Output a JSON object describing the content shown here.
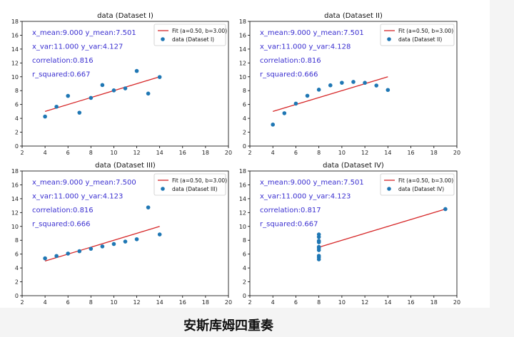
{
  "suptitle": "安斯库姆四重奏",
  "colors": {
    "fit": "#d62728",
    "points": "#1f77b4",
    "stats_text": "#3a2fd0"
  },
  "chart_data": [
    {
      "type": "scatter",
      "title": "data (Dataset I)",
      "xlim": [
        2,
        20
      ],
      "ylim": [
        0,
        18
      ],
      "xticks": [
        2,
        4,
        6,
        8,
        10,
        12,
        14,
        16,
        18,
        20
      ],
      "yticks": [
        0,
        2,
        4,
        6,
        8,
        10,
        12,
        14,
        16,
        18
      ],
      "legend": "top-right",
      "fit_label": "Fit (a=0.50, b=3.00)",
      "data_label": "data (Dataset I)",
      "fit": {
        "a": 0.5,
        "b": 3.0,
        "x_range": [
          4,
          14
        ]
      },
      "x": [
        10,
        8,
        13,
        9,
        11,
        14,
        6,
        4,
        12,
        7,
        5
      ],
      "y": [
        8.04,
        6.95,
        7.58,
        8.81,
        8.33,
        9.96,
        7.24,
        4.26,
        10.84,
        4.82,
        5.68
      ],
      "stats": [
        "x_mean:9.000 y_mean:7.501",
        "x_var:11.000 y_var:4.127",
        "correlation:0.816",
        "r_squared:0.667"
      ]
    },
    {
      "type": "scatter",
      "title": "data (Dataset II)",
      "xlim": [
        2,
        20
      ],
      "ylim": [
        0,
        18
      ],
      "xticks": [
        2,
        4,
        6,
        8,
        10,
        12,
        14,
        16,
        18,
        20
      ],
      "yticks": [
        0,
        2,
        4,
        6,
        8,
        10,
        12,
        14,
        16,
        18
      ],
      "legend": "top-right",
      "fit_label": "Fit (a=0.50, b=3.00)",
      "data_label": "data (Dataset II)",
      "fit": {
        "a": 0.5,
        "b": 3.0,
        "x_range": [
          4,
          14
        ]
      },
      "x": [
        10,
        8,
        13,
        9,
        11,
        14,
        6,
        4,
        12,
        7,
        5
      ],
      "y": [
        9.14,
        8.14,
        8.74,
        8.77,
        9.26,
        8.1,
        6.13,
        3.1,
        9.13,
        7.26,
        4.74
      ],
      "stats": [
        "x_mean:9.000 y_mean:7.501",
        "x_var:11.000 y_var:4.128",
        "correlation:0.816",
        "r_squared:0.666"
      ]
    },
    {
      "type": "scatter",
      "title": "data (Dataset III)",
      "xlim": [
        2,
        20
      ],
      "ylim": [
        0,
        18
      ],
      "xticks": [
        2,
        4,
        6,
        8,
        10,
        12,
        14,
        16,
        18,
        20
      ],
      "yticks": [
        0,
        2,
        4,
        6,
        8,
        10,
        12,
        14,
        16,
        18
      ],
      "legend": "top-right",
      "fit_label": "Fit (a=0.50, b=3.00)",
      "data_label": "data (Dataset III)",
      "fit": {
        "a": 0.5,
        "b": 3.0,
        "x_range": [
          4,
          14
        ]
      },
      "x": [
        10,
        8,
        13,
        9,
        11,
        14,
        6,
        4,
        12,
        7,
        5
      ],
      "y": [
        7.46,
        6.77,
        12.74,
        7.11,
        7.81,
        8.84,
        6.08,
        5.39,
        8.15,
        6.42,
        5.73
      ],
      "stats": [
        "x_mean:9.000 y_mean:7.500",
        "x_var:11.000 y_var:4.123",
        "correlation:0.816",
        "r_squared:0.666"
      ]
    },
    {
      "type": "scatter",
      "title": "data (Dataset IV)",
      "xlim": [
        2,
        20
      ],
      "ylim": [
        0,
        18
      ],
      "xticks": [
        2,
        4,
        6,
        8,
        10,
        12,
        14,
        16,
        18,
        20
      ],
      "yticks": [
        0,
        2,
        4,
        6,
        8,
        10,
        12,
        14,
        16,
        18
      ],
      "legend": "top-right",
      "fit_label": "Fit (a=0.50, b=3.00)",
      "data_label": "data (Dataset IV)",
      "fit": {
        "a": 0.5,
        "b": 3.0,
        "x_range": [
          8,
          19
        ]
      },
      "x": [
        8,
        8,
        8,
        8,
        8,
        8,
        8,
        19,
        8,
        8,
        8
      ],
      "y": [
        6.58,
        5.76,
        7.71,
        8.84,
        8.47,
        7.04,
        5.25,
        12.5,
        5.56,
        7.91,
        6.89
      ],
      "stats": [
        "x_mean:9.000 y_mean:7.501",
        "x_var:11.000 y_var:4.123",
        "correlation:0.817",
        "r_squared:0.667"
      ]
    }
  ]
}
